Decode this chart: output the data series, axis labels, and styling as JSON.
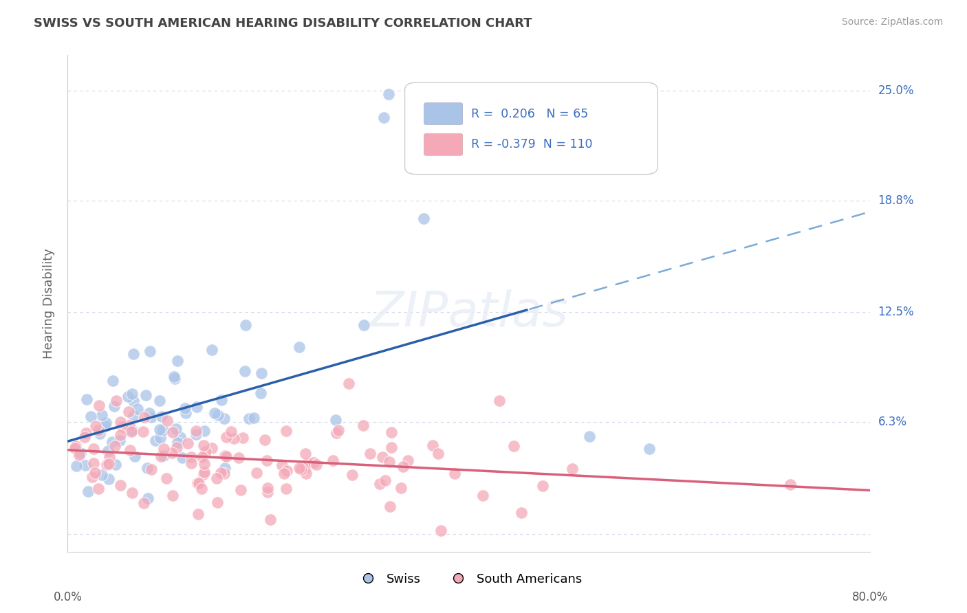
{
  "title": "SWISS VS SOUTH AMERICAN HEARING DISABILITY CORRELATION CHART",
  "source": "Source: ZipAtlas.com",
  "ylabel": "Hearing Disability",
  "xmin": 0.0,
  "xmax": 0.8,
  "ymin": -0.01,
  "ymax": 0.27,
  "yticks": [
    0.0,
    0.063,
    0.125,
    0.188,
    0.25
  ],
  "ytick_labels": [
    "",
    "6.3%",
    "12.5%",
    "18.8%",
    "25.0%"
  ],
  "xticks": [
    0.0,
    0.1,
    0.2,
    0.3,
    0.4,
    0.5,
    0.6,
    0.7,
    0.8
  ],
  "swiss_R": 0.206,
  "swiss_N": 65,
  "sa_R": -0.379,
  "sa_N": 110,
  "swiss_color": "#aac4e8",
  "sa_color": "#f4a8b8",
  "swiss_line_color": "#2b5faa",
  "sa_line_color": "#d9607a",
  "dash_line_color": "#7aaad8",
  "background_color": "#ffffff",
  "grid_color": "#d0d8e8",
  "title_color": "#444444",
  "source_color": "#999999",
  "tick_label_color": "#3a6dbf",
  "swiss_seed": 42,
  "sa_seed": 123
}
